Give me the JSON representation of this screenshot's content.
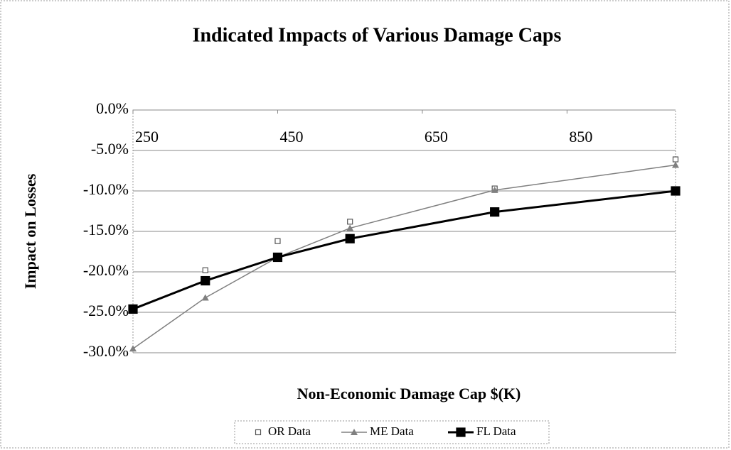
{
  "chart_data": {
    "type": "line",
    "title": "Indicated Impacts of Various Damage Caps",
    "x_label": "Non-Economic Damage Cap $(K)",
    "y_label": "Impact on Losses",
    "x": [
      250,
      350,
      450,
      550,
      750,
      1000
    ],
    "series": [
      {
        "name": "OR Data",
        "color": "#555555",
        "line": false,
        "marker": "square-open",
        "values": [
          null,
          -19.8,
          -16.2,
          -13.8,
          -9.7,
          -6.1
        ]
      },
      {
        "name": "ME Data",
        "color": "#808080",
        "line": true,
        "marker": "triangle",
        "values": [
          -29.5,
          -23.2,
          -18.2,
          -14.6,
          -9.9,
          -6.8
        ]
      },
      {
        "name": "FL Data",
        "color": "#000000",
        "line": true,
        "marker": "square",
        "values": [
          -24.6,
          -21.1,
          -18.2,
          -15.9,
          -12.6,
          -10.0
        ]
      }
    ],
    "xlim": [
      250,
      1000
    ],
    "xticks": [
      250,
      450,
      650,
      850
    ],
    "ylim": [
      -30,
      0
    ],
    "yticks": [
      {
        "value": 0,
        "label": "0.0%"
      },
      {
        "value": -5,
        "label": "-5.0%"
      },
      {
        "value": -10,
        "label": "-10.0%"
      },
      {
        "value": -15,
        "label": "-15.0%"
      },
      {
        "value": -20,
        "label": "-20.0%"
      },
      {
        "value": -25,
        "label": "-25.0%"
      },
      {
        "value": -30,
        "label": "-30.0%"
      }
    ],
    "grid": true,
    "legend": "bottom"
  }
}
